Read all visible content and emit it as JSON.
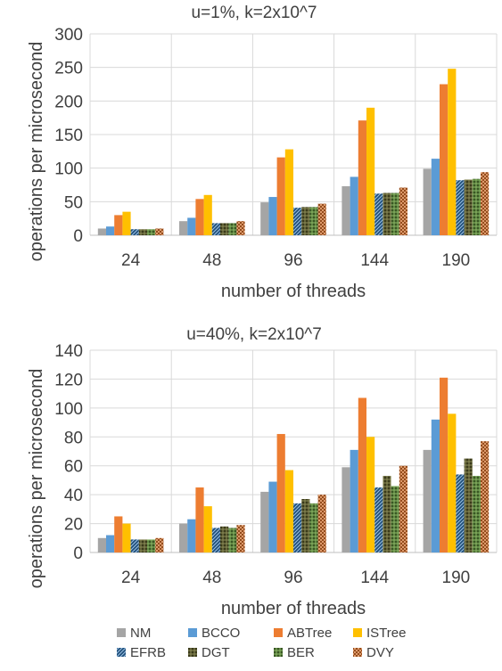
{
  "chart_data": [
    {
      "type": "bar",
      "title": "u=1%, k=2x10^7",
      "xlabel": "number of threads",
      "ylabel": "operations per microsecond",
      "ylim": [
        0,
        300
      ],
      "yticks": [
        0,
        50,
        100,
        150,
        200,
        250,
        300
      ],
      "grid": true,
      "categories": [
        "24",
        "48",
        "96",
        "144",
        "190"
      ],
      "series": [
        {
          "name": "NM",
          "values": [
            10,
            21,
            49,
            73,
            99
          ]
        },
        {
          "name": "BCCO",
          "values": [
            13,
            26,
            57,
            87,
            114
          ]
        },
        {
          "name": "ABTree",
          "values": [
            30,
            54,
            116,
            171,
            225
          ]
        },
        {
          "name": "ISTree",
          "values": [
            35,
            60,
            128,
            190,
            248
          ]
        },
        {
          "name": "EFRB",
          "values": [
            9,
            18,
            41,
            62,
            82
          ]
        },
        {
          "name": "DGT",
          "values": [
            9,
            18,
            42,
            63,
            83
          ]
        },
        {
          "name": "BER",
          "values": [
            9,
            18,
            42,
            63,
            84
          ]
        },
        {
          "name": "DVY",
          "values": [
            10,
            21,
            47,
            71,
            94
          ]
        }
      ]
    },
    {
      "type": "bar",
      "title": "u=40%, k=2x10^7",
      "xlabel": "number of threads",
      "ylabel": "operations per microsecond",
      "ylim": [
        0,
        140
      ],
      "yticks": [
        0,
        20,
        40,
        60,
        80,
        100,
        120,
        140
      ],
      "grid": true,
      "categories": [
        "24",
        "48",
        "96",
        "144",
        "190"
      ],
      "series": [
        {
          "name": "NM",
          "values": [
            10,
            20,
            42,
            59,
            71
          ]
        },
        {
          "name": "BCCO",
          "values": [
            12,
            23,
            49,
            71,
            92
          ]
        },
        {
          "name": "ABTree",
          "values": [
            25,
            45,
            82,
            107,
            121
          ]
        },
        {
          "name": "ISTree",
          "values": [
            20,
            32,
            57,
            80,
            96
          ]
        },
        {
          "name": "EFRB",
          "values": [
            9,
            17,
            34,
            45,
            54
          ]
        },
        {
          "name": "DGT",
          "values": [
            9,
            18,
            37,
            53,
            65
          ]
        },
        {
          "name": "BER",
          "values": [
            9,
            17,
            34,
            46,
            53
          ]
        },
        {
          "name": "DVY",
          "values": [
            10,
            19,
            40,
            60,
            77
          ]
        }
      ]
    }
  ],
  "legend": {
    "placement": "bottom",
    "items": [
      {
        "name": "NM",
        "color": "#a5a5a5",
        "pattern": "solid"
      },
      {
        "name": "BCCO",
        "color": "#5b9bd5",
        "pattern": "solid"
      },
      {
        "name": "ABTree",
        "color": "#ed7d31",
        "pattern": "solid"
      },
      {
        "name": "ISTree",
        "color": "#ffc000",
        "pattern": "solid"
      },
      {
        "name": "EFRB",
        "color": "#1f4e79",
        "pattern": "diagonal"
      },
      {
        "name": "DGT",
        "color": "#3a3a1a",
        "pattern": "grid"
      },
      {
        "name": "BER",
        "color": "#548235",
        "pattern": "grid"
      },
      {
        "name": "DVY",
        "color": "#c55a11",
        "pattern": "crosshatch"
      }
    ]
  }
}
